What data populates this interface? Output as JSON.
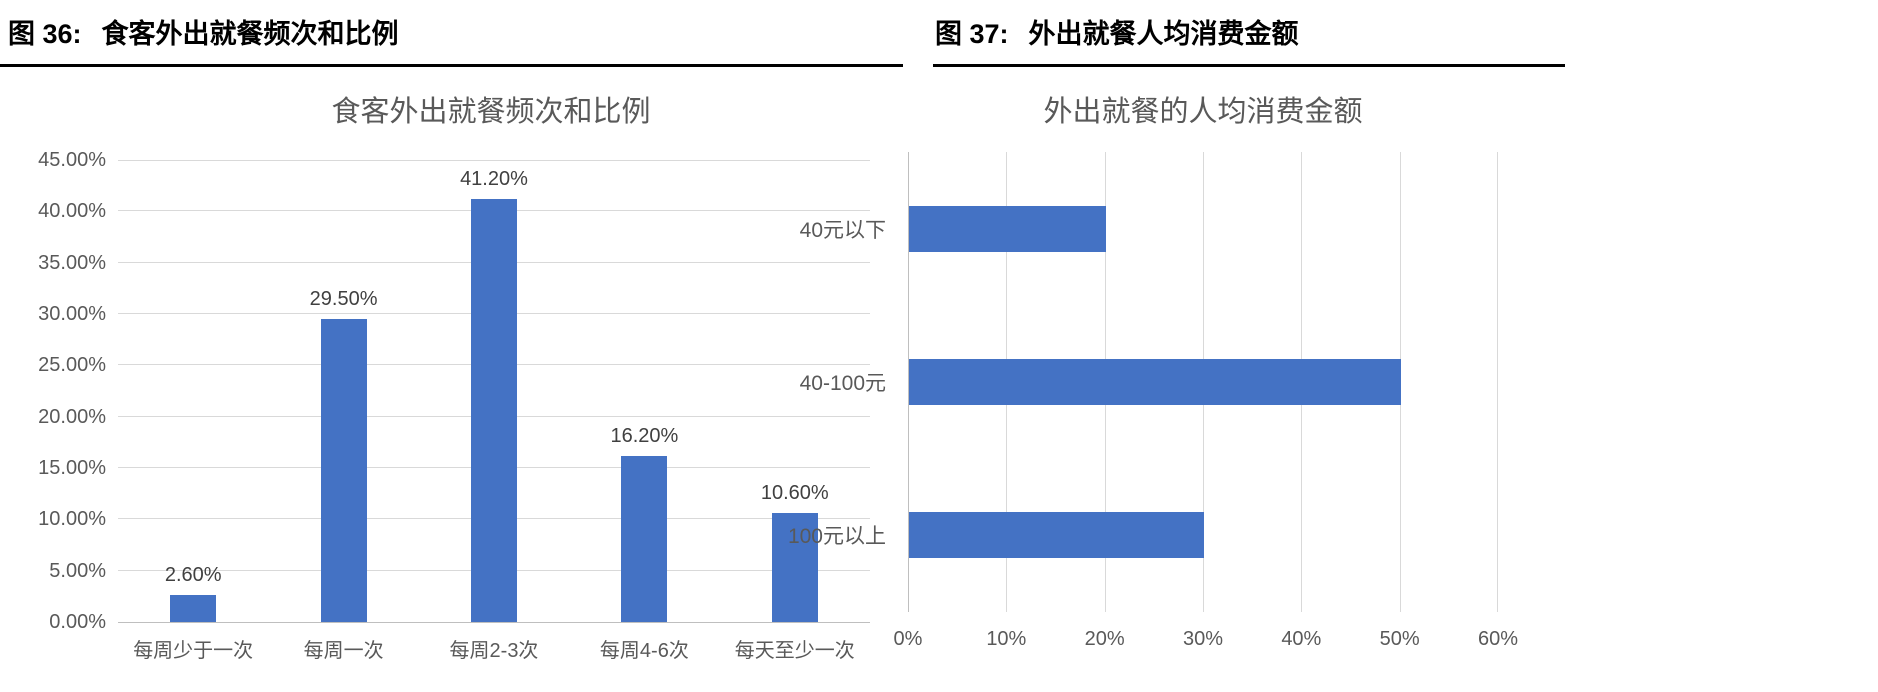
{
  "captions": {
    "left": {
      "label": "图 36:",
      "title": "食客外出就餐频次和比例"
    },
    "right": {
      "label": "图 37:",
      "title": "外出就餐人均消费金额"
    }
  },
  "chart_data": [
    {
      "type": "bar",
      "title": "食客外出就餐频次和比例",
      "categories": [
        "每周少于一次",
        "每周一次",
        "每周2-3次",
        "每周4-6次",
        "每天至少一次"
      ],
      "values": [
        2.6,
        29.5,
        41.2,
        16.2,
        10.6
      ],
      "data_labels": [
        "2.60%",
        "29.50%",
        "41.20%",
        "16.20%",
        "10.60%"
      ],
      "xlabel": "",
      "ylabel": "",
      "ylim": [
        0,
        45
      ],
      "ytick_step": 5,
      "ytick_labels": [
        "0.00%",
        "5.00%",
        "10.00%",
        "15.00%",
        "20.00%",
        "25.00%",
        "30.00%",
        "35.00%",
        "40.00%",
        "45.00%"
      ],
      "grid": true,
      "legend": false,
      "bar_color": "#4472c4"
    },
    {
      "type": "bar",
      "orientation": "horizontal",
      "title": "外出就餐的人均消费金额",
      "categories": [
        "40元以下",
        "40-100元",
        "100元以上"
      ],
      "values": [
        20,
        50,
        30
      ],
      "xlabel": "",
      "ylabel": "",
      "xlim": [
        0,
        60
      ],
      "xtick_step": 10,
      "xtick_labels": [
        "0%",
        "10%",
        "20%",
        "30%",
        "40%",
        "50%",
        "60%"
      ],
      "grid": true,
      "legend": false,
      "bar_color": "#4472c4"
    }
  ]
}
